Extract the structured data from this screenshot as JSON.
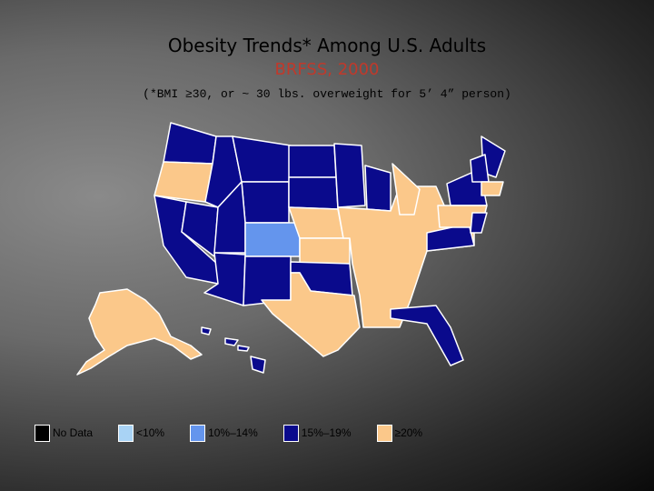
{
  "header": {
    "title": "Obesity Trends* Among U.S. Adults",
    "subtitle": "BRFSS, 2000",
    "note": "(*BMI ≥30, or ~ 30 lbs. overweight for 5’ 4” person)"
  },
  "legend": [
    {
      "label": "No Data",
      "color": "#000000"
    },
    {
      "label": "<10%",
      "color": "#a9d3f5"
    },
    {
      "label": "10%–14%",
      "color": "#6495ed"
    },
    {
      "label": "15%–19%",
      "color": "#0a0a8c"
    },
    {
      "label": "≥20%",
      "color": "#fbc88a"
    }
  ]
}
